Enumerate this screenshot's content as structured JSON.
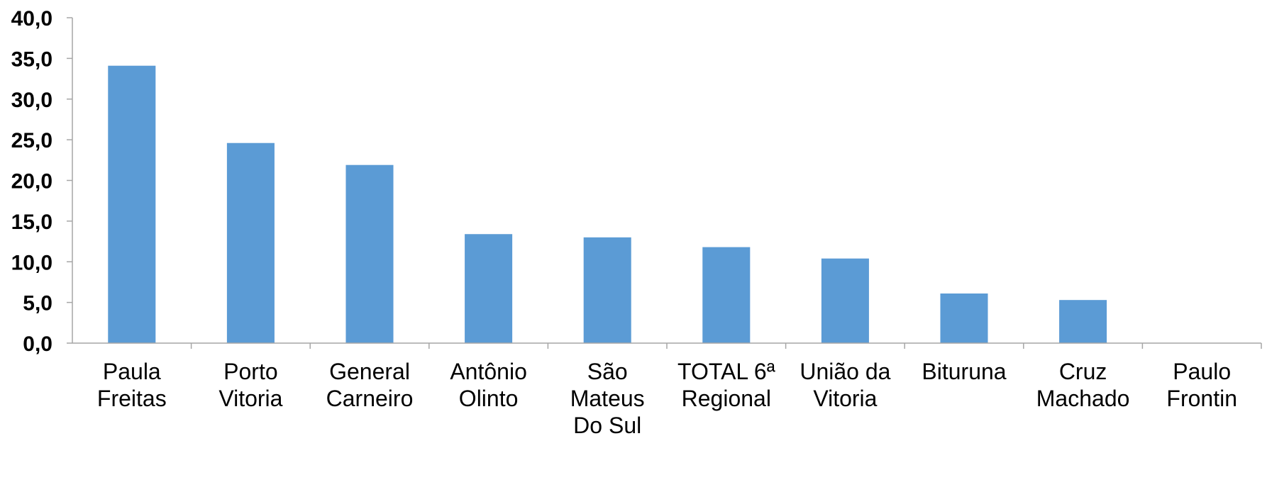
{
  "chart_data": {
    "type": "bar",
    "title": "",
    "xlabel": "",
    "ylabel": "",
    "categories": [
      [
        "Paula",
        "Freitas"
      ],
      [
        "Porto",
        "Vitoria"
      ],
      [
        "General",
        "Carneiro"
      ],
      [
        "Antônio",
        "Olinto"
      ],
      [
        "São",
        "Mateus",
        "Do Sul"
      ],
      [
        "TOTAL 6ª",
        "Regional"
      ],
      [
        "União da",
        "Vitoria"
      ],
      [
        "Bituruna"
      ],
      [
        "Cruz",
        "Machado"
      ],
      [
        "Paulo",
        "Frontin"
      ]
    ],
    "values": [
      34.1,
      24.6,
      21.9,
      13.4,
      13.0,
      11.8,
      10.4,
      6.1,
      5.3,
      0.0
    ],
    "ylim": [
      0,
      40
    ],
    "yticks": [
      "0,0",
      "5,0",
      "10,0",
      "15,0",
      "20,0",
      "25,0",
      "30,0",
      "35,0",
      "40,0"
    ],
    "bar_color": "#5B9BD5",
    "axis_color": "#A6A6A6",
    "grid": false,
    "legend": "none"
  }
}
